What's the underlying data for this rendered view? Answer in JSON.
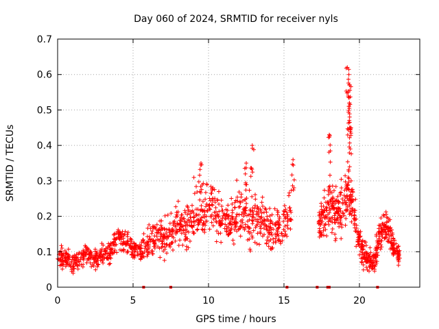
{
  "chart_data": {
    "type": "scatter",
    "title": "Day 060 of 2024, SRMTID for receiver nyls",
    "xlabel": "GPS time / hours",
    "ylabel": "SRMTID / TECUs",
    "xlim": [
      0,
      24
    ],
    "ylim": [
      0,
      0.7
    ],
    "xticks": [
      0,
      5,
      10,
      15,
      20
    ],
    "yticks": [
      0,
      0.1,
      0.2,
      0.3,
      0.4,
      0.5,
      0.6,
      0.7
    ],
    "xtick_labels": [
      "0",
      "5",
      "10",
      "15",
      "20"
    ],
    "ytick_labels": [
      "0",
      "0.1",
      "0.2",
      "0.3",
      "0.4",
      "0.5",
      "0.6",
      "0.7"
    ],
    "grid": true,
    "marker": "+",
    "color": "#ff0000",
    "profile": {
      "x": [
        0,
        0.5,
        1,
        1.5,
        2,
        2.5,
        3,
        3.5,
        4,
        4.5,
        5,
        5.5,
        6,
        6.5,
        7,
        7.5,
        8,
        8.5,
        9,
        9.5,
        10,
        10.5,
        11,
        11.5,
        12,
        12.5,
        13,
        13.5,
        14,
        14.5,
        15,
        15.5,
        17.3,
        17.6,
        18,
        18.3,
        18.6,
        19,
        19.3,
        19.6,
        20,
        20.3,
        20.6,
        21,
        21.3,
        21.6,
        22,
        22.3,
        22.7
      ],
      "y": [
        0.08,
        0.08,
        0.07,
        0.08,
        0.09,
        0.08,
        0.09,
        0.1,
        0.14,
        0.13,
        0.11,
        0.1,
        0.13,
        0.14,
        0.14,
        0.15,
        0.18,
        0.17,
        0.2,
        0.22,
        0.24,
        0.21,
        0.19,
        0.17,
        0.2,
        0.19,
        0.2,
        0.18,
        0.17,
        0.16,
        0.18,
        0.22,
        0.17,
        0.19,
        0.24,
        0.22,
        0.2,
        0.24,
        0.28,
        0.22,
        0.13,
        0.09,
        0.08,
        0.07,
        0.14,
        0.17,
        0.16,
        0.11,
        0.09
      ],
      "spread": [
        0.03,
        0.03,
        0.03,
        0.03,
        0.03,
        0.03,
        0.03,
        0.03,
        0.04,
        0.04,
        0.03,
        0.03,
        0.05,
        0.05,
        0.05,
        0.06,
        0.06,
        0.06,
        0.08,
        0.08,
        0.08,
        0.07,
        0.07,
        0.07,
        0.08,
        0.08,
        0.08,
        0.07,
        0.07,
        0.06,
        0.06,
        0.08,
        0.06,
        0.07,
        0.09,
        0.07,
        0.07,
        0.09,
        0.1,
        0.07,
        0.05,
        0.04,
        0.03,
        0.03,
        0.05,
        0.05,
        0.05,
        0.03,
        0.03
      ]
    },
    "peaks": [
      {
        "x": 9.5,
        "y": 0.35
      },
      {
        "x": 12.5,
        "y": 0.35
      },
      {
        "x": 12.9,
        "y": 0.4
      },
      {
        "x": 15.6,
        "y": 0.36
      },
      {
        "x": 18.0,
        "y": 0.43
      },
      {
        "x": 19.2,
        "y": 0.62
      },
      {
        "x": 19.3,
        "y": 0.6
      },
      {
        "x": 19.35,
        "y": 0.57
      },
      {
        "x": 19.3,
        "y": 0.51
      },
      {
        "x": 19.35,
        "y": 0.48
      },
      {
        "x": 19.4,
        "y": 0.45
      }
    ],
    "zero_markers": [
      5.7,
      7.5,
      15.2,
      17.2,
      17.9,
      18.0,
      21.2
    ]
  }
}
